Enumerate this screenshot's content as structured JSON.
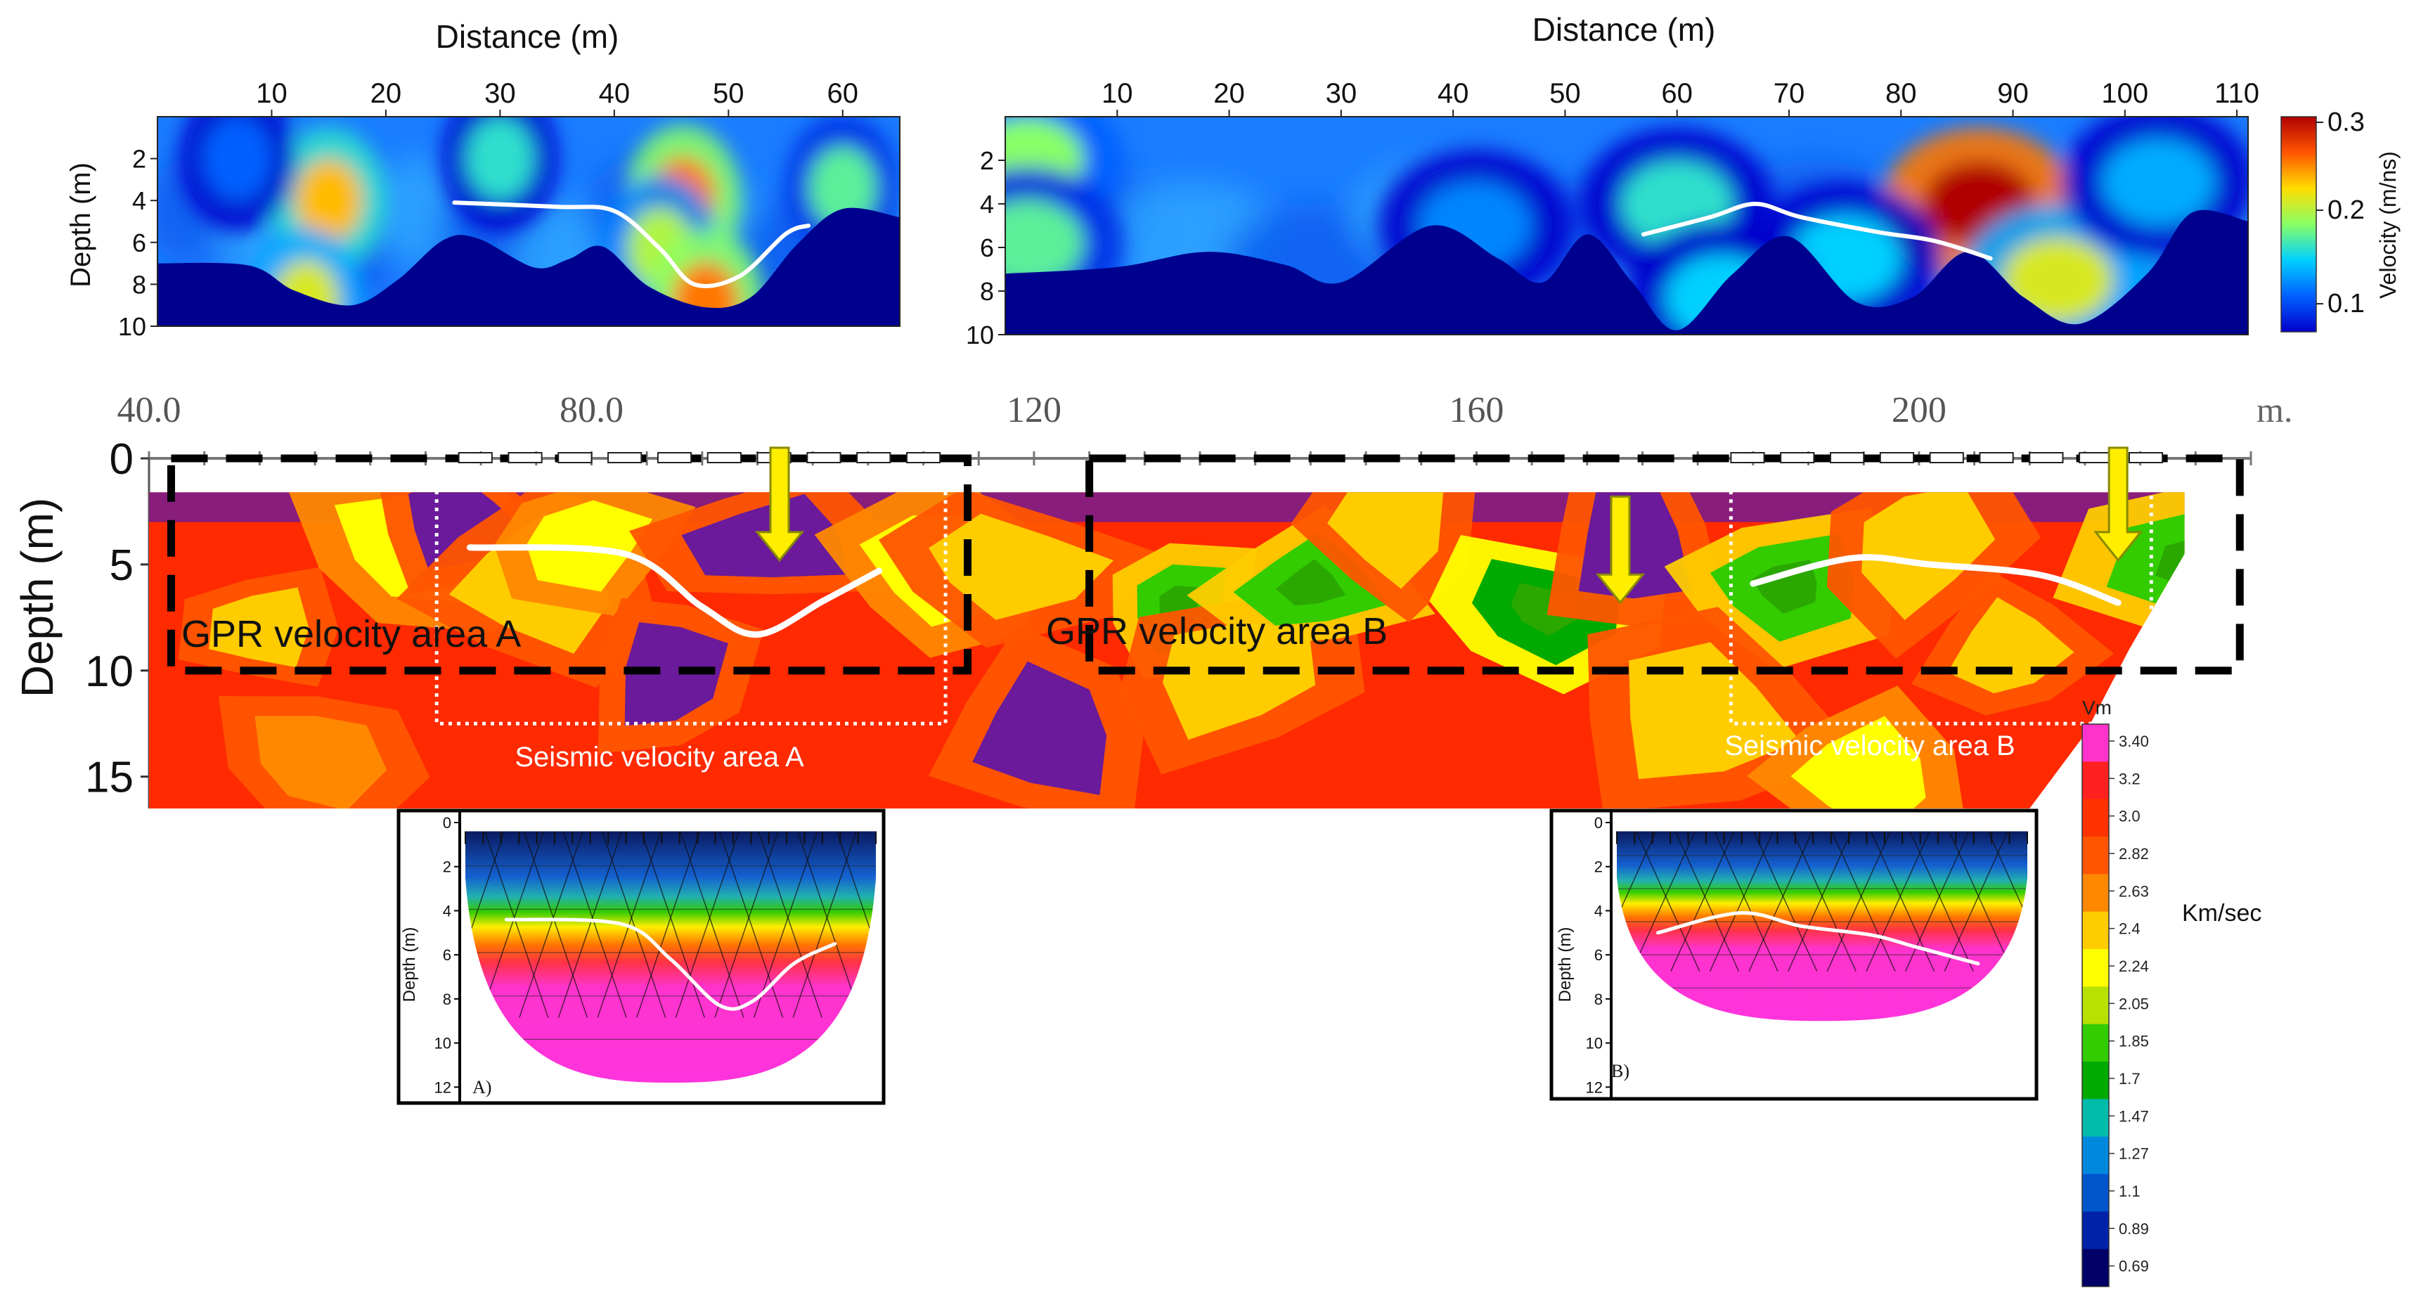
{
  "chart_data": [
    {
      "type": "heatmap",
      "panel": "gpr-a",
      "xlabel": "Distance (m)",
      "ylabel": "Depth (m)",
      "xticks": [
        10,
        20,
        30,
        40,
        50,
        60
      ],
      "yticks": [
        2,
        4,
        6,
        8,
        10
      ],
      "xlim": [
        0,
        65
      ],
      "ylim": [
        0,
        10
      ],
      "hotspots": [
        {
          "x": 15,
          "y": 4.0,
          "v": 0.22
        },
        {
          "x": 46,
          "y": 3.9,
          "v": 0.24
        },
        {
          "x": 44,
          "y": 6.3,
          "v": 0.19
        },
        {
          "x": 60,
          "y": 3.4,
          "v": 0.17
        },
        {
          "x": 30,
          "y": 2.0,
          "v": 0.16
        },
        {
          "x": 48,
          "y": 8.9,
          "v": 0.24
        },
        {
          "x": 13,
          "y": 8.8,
          "v": 0.2
        },
        {
          "x": 7,
          "y": 2.0,
          "v": 0.12
        }
      ],
      "bottom_profile": [
        [
          0,
          7.0
        ],
        [
          8,
          7.1
        ],
        [
          12,
          8.3
        ],
        [
          17,
          9.0
        ],
        [
          21,
          7.8
        ],
        [
          25,
          5.9
        ],
        [
          28,
          5.8
        ],
        [
          33,
          7.2
        ],
        [
          36,
          6.8
        ],
        [
          39,
          6.2
        ],
        [
          43,
          8.1
        ],
        [
          48,
          9.1
        ],
        [
          52,
          8.6
        ],
        [
          56,
          6.1
        ],
        [
          60,
          4.4
        ],
        [
          65,
          4.8
        ]
      ],
      "white_line": [
        [
          26,
          4.1
        ],
        [
          35,
          4.3
        ],
        [
          40,
          4.5
        ],
        [
          44,
          6.3
        ],
        [
          47,
          8.0
        ],
        [
          51,
          7.6
        ],
        [
          55,
          5.6
        ],
        [
          57,
          5.2
        ]
      ]
    },
    {
      "type": "heatmap",
      "panel": "gpr-b",
      "xlabel": "Distance (m)",
      "ylabel": "Depth (m)",
      "xticks": [
        10,
        20,
        30,
        40,
        50,
        60,
        70,
        80,
        90,
        100,
        110
      ],
      "yticks": [
        2,
        4,
        6,
        8,
        10
      ],
      "xlim": [
        0,
        111
      ],
      "ylim": [
        0,
        10
      ],
      "hotspots": [
        {
          "x": 87,
          "y": 4.0,
          "v": 0.3
        },
        {
          "x": 2,
          "y": 2.0,
          "v": 0.18
        },
        {
          "x": 2,
          "y": 5.8,
          "v": 0.17
        },
        {
          "x": 60,
          "y": 4.0,
          "v": 0.16
        },
        {
          "x": 75,
          "y": 6.5,
          "v": 0.15
        },
        {
          "x": 64,
          "y": 8.3,
          "v": 0.15
        },
        {
          "x": 94,
          "y": 7.5,
          "v": 0.2
        },
        {
          "x": 42,
          "y": 5.0,
          "v": 0.13
        },
        {
          "x": 103,
          "y": 3.0,
          "v": 0.14
        }
      ],
      "bottom_profile": [
        [
          0,
          7.2
        ],
        [
          10,
          6.9
        ],
        [
          18,
          6.2
        ],
        [
          25,
          6.8
        ],
        [
          30,
          7.6
        ],
        [
          38,
          5.0
        ],
        [
          44,
          6.5
        ],
        [
          48,
          7.6
        ],
        [
          52,
          5.4
        ],
        [
          56,
          7.6
        ],
        [
          60,
          9.8
        ],
        [
          65,
          7.2
        ],
        [
          70,
          5.5
        ],
        [
          76,
          8.5
        ],
        [
          81,
          8.3
        ],
        [
          86,
          6.2
        ],
        [
          91,
          8.3
        ],
        [
          96,
          9.5
        ],
        [
          102,
          7.2
        ],
        [
          106,
          4.4
        ],
        [
          111,
          4.8
        ]
      ],
      "white_line": [
        [
          57,
          5.4
        ],
        [
          63,
          4.6
        ],
        [
          67,
          4.0
        ],
        [
          71,
          4.6
        ],
        [
          78,
          5.3
        ],
        [
          83,
          5.7
        ],
        [
          88,
          6.5
        ]
      ]
    },
    {
      "type": "heatmap",
      "panel": "seismic-section",
      "ylabel": "Depth (m)",
      "xticks": [
        "40.0",
        "80.0",
        "120",
        "160",
        "200"
      ],
      "xtick_values": [
        40,
        80,
        120,
        160,
        200
      ],
      "x_unit": "m.",
      "yticks": [
        0,
        5,
        10,
        15
      ],
      "xlim": [
        40,
        230
      ],
      "ylim": [
        0,
        16.5
      ],
      "colorbar_title": "Vm",
      "colorbar_unit": "Km/sec",
      "colorbar_ticks": [
        "3.40",
        "3.2",
        "3.0",
        "2.82",
        "2.63",
        "2.4",
        "2.24",
        "2.05",
        "1.85",
        "1.7",
        "1.47",
        "1.27",
        "1.1",
        "0.89",
        "0.69"
      ],
      "colorbar_colors": [
        "#ff33cc",
        "#ff2020",
        "#ff3300",
        "#ff5500",
        "#ff8800",
        "#ffcc00",
        "#ffff00",
        "#b8e000",
        "#33cc00",
        "#00aa00",
        "#00bbaa",
        "#0088dd",
        "#0055cc",
        "#0022aa",
        "#000066"
      ],
      "annotations": [
        "GPR velocity area A",
        "GPR velocity area B",
        "Seismic velocity area A",
        "Seismic velocity area B"
      ],
      "zones": [
        {
          "x": 50,
          "y": 8,
          "v": 2.6
        },
        {
          "x": 64,
          "y": 4,
          "v": 2.3
        },
        {
          "x": 68,
          "y": 3,
          "v": 3.4
        },
        {
          "x": 75,
          "y": 6,
          "v": 2.5
        },
        {
          "x": 79,
          "y": 4,
          "v": 2.3
        },
        {
          "x": 87,
          "y": 10,
          "v": 3.4
        },
        {
          "x": 96,
          "y": 4,
          "v": 3.4
        },
        {
          "x": 111,
          "y": 5,
          "v": 2.3
        },
        {
          "x": 118,
          "y": 5,
          "v": 2.5
        },
        {
          "x": 121,
          "y": 13,
          "v": 3.4
        },
        {
          "x": 133,
          "y": 7,
          "v": 1.9
        },
        {
          "x": 138,
          "y": 10,
          "v": 2.4
        },
        {
          "x": 145,
          "y": 6,
          "v": 1.9
        },
        {
          "x": 152,
          "y": 3,
          "v": 2.6
        },
        {
          "x": 166,
          "y": 7,
          "v": 1.8
        },
        {
          "x": 174,
          "y": 4,
          "v": 3.4
        },
        {
          "x": 188,
          "y": 6,
          "v": 2.0
        },
        {
          "x": 200,
          "y": 4,
          "v": 2.6
        },
        {
          "x": 208,
          "y": 9,
          "v": 2.4
        },
        {
          "x": 225,
          "y": 5,
          "v": 2.0
        },
        {
          "x": 55,
          "y": 14,
          "v": 2.8
        },
        {
          "x": 180,
          "y": 12,
          "v": 2.5
        },
        {
          "x": 195,
          "y": 15,
          "v": 2.3
        }
      ],
      "white_line_a": [
        [
          69,
          4.2
        ],
        [
          83,
          4.5
        ],
        [
          90,
          7.0
        ],
        [
          95,
          8.3
        ],
        [
          101,
          6.7
        ],
        [
          106,
          5.3
        ]
      ],
      "white_line_b": [
        [
          185,
          5.9
        ],
        [
          194,
          4.7
        ],
        [
          201,
          5.0
        ],
        [
          211,
          5.5
        ],
        [
          218,
          6.8
        ]
      ],
      "arrows_x": [
        97,
        173,
        218
      ]
    },
    {
      "type": "heatmap",
      "panel": "inset-a",
      "ylabel": "Depth (m)",
      "yticks": [
        0,
        2,
        4,
        6,
        8,
        10,
        12
      ],
      "panel_label": "A)",
      "white_line": [
        [
          0.1,
          4.4
        ],
        [
          0.38,
          4.6
        ],
        [
          0.5,
          6.2
        ],
        [
          0.62,
          8.3
        ],
        [
          0.7,
          8.1
        ],
        [
          0.8,
          6.4
        ],
        [
          0.9,
          5.5
        ]
      ]
    },
    {
      "type": "heatmap",
      "panel": "inset-b",
      "ylabel": "Depth (m)",
      "yticks": [
        0,
        2,
        4,
        6,
        8,
        10,
        12
      ],
      "panel_label": "B)",
      "white_line": [
        [
          0.1,
          5.0
        ],
        [
          0.3,
          4.1
        ],
        [
          0.45,
          4.7
        ],
        [
          0.62,
          5.1
        ],
        [
          0.72,
          5.6
        ],
        [
          0.82,
          6.1
        ],
        [
          0.88,
          6.4
        ]
      ]
    }
  ],
  "colorbar_gpr": {
    "title": "Velocity (m/ns)",
    "ticks": [
      "0.3",
      "0.2",
      "0.1"
    ],
    "tick_values": [
      0.3,
      0.2,
      0.1
    ],
    "colors": [
      "#b00000",
      "#ff5500",
      "#ffdd00",
      "#88ff66",
      "#00d0ff",
      "#0060ff",
      "#0000cc"
    ]
  },
  "labels": {
    "gpr_a_xlabel": "Distance (m)",
    "gpr_b_xlabel": "Distance (m)",
    "depth_m": "Depth (m)",
    "section_ylabel": "Depth (m)",
    "gpr_area_a": "GPR velocity area A",
    "gpr_area_b": "GPR velocity area B",
    "seismic_area_a": "Seismic velocity area A",
    "seismic_area_b": "Seismic velocity area B",
    "velocity_axis": "Velocity (m/ns)",
    "vm_title": "Vm",
    "km_sec": "Km/sec",
    "inset_a_label": "A)",
    "inset_b_label": "B)",
    "x_unit": "m."
  }
}
